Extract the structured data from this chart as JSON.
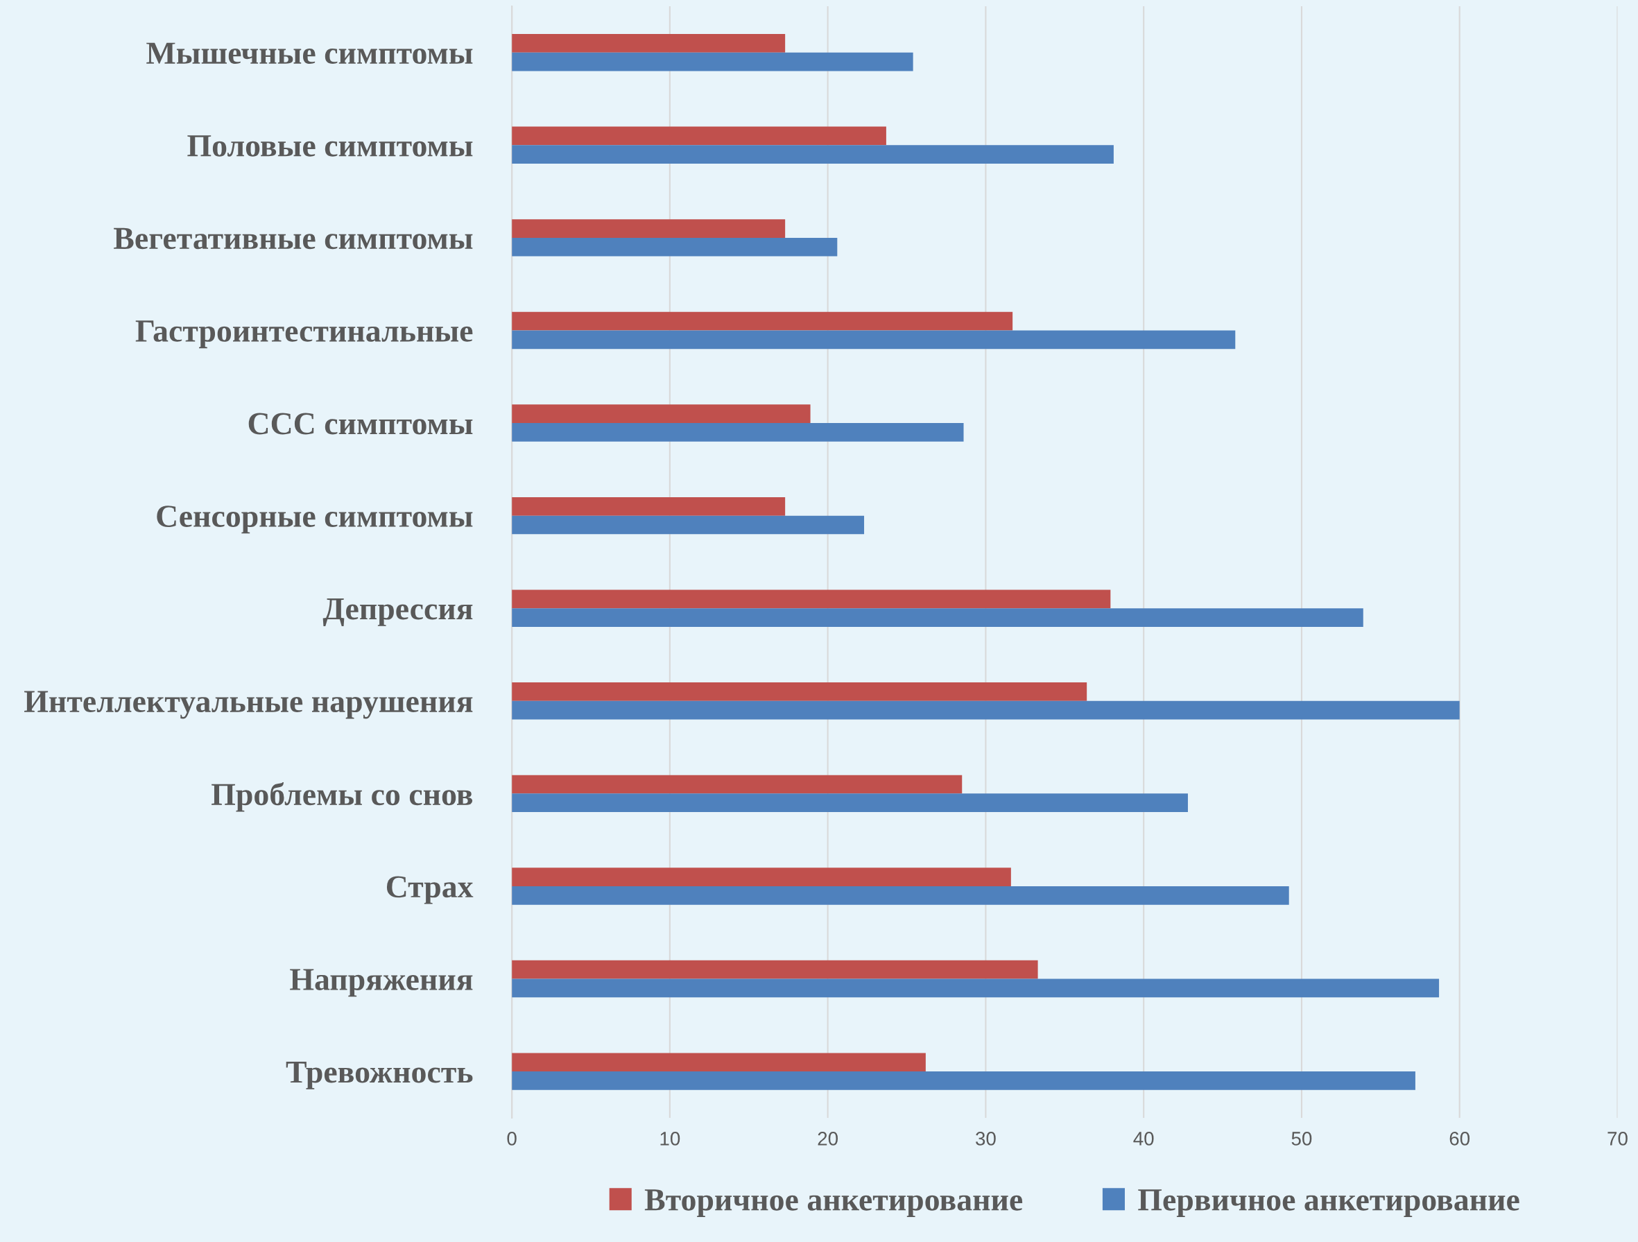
{
  "chart_data": {
    "type": "bar",
    "orientation": "horizontal",
    "categories": [
      "Мышечные симптомы",
      "Половые симптомы",
      "Вегетативные симптомы",
      "Гастроинтестинальные",
      "ССС симптомы",
      "Сенсорные симптомы",
      "Депрессия",
      "Интеллектуальные нарушения",
      "Проблемы со снов",
      "Страх",
      "Напряжения",
      "Тревожность"
    ],
    "series": [
      {
        "name": "Вторичное анкетирование",
        "color": "#c0504d",
        "values": [
          17.3,
          23.7,
          17.3,
          31.7,
          18.9,
          17.3,
          37.9,
          36.4,
          28.5,
          31.6,
          33.3,
          26.2
        ]
      },
      {
        "name": "Первичное анкетирование",
        "color": "#4f81bd",
        "values": [
          25.4,
          38.1,
          20.6,
          45.8,
          28.6,
          22.3,
          53.9,
          60.0,
          42.8,
          49.2,
          58.7,
          57.2
        ]
      }
    ],
    "xlim": [
      0,
      70
    ],
    "xticks": [
      0,
      10,
      20,
      30,
      40,
      50,
      60,
      70
    ],
    "grid": "x",
    "legend": "bottom"
  }
}
